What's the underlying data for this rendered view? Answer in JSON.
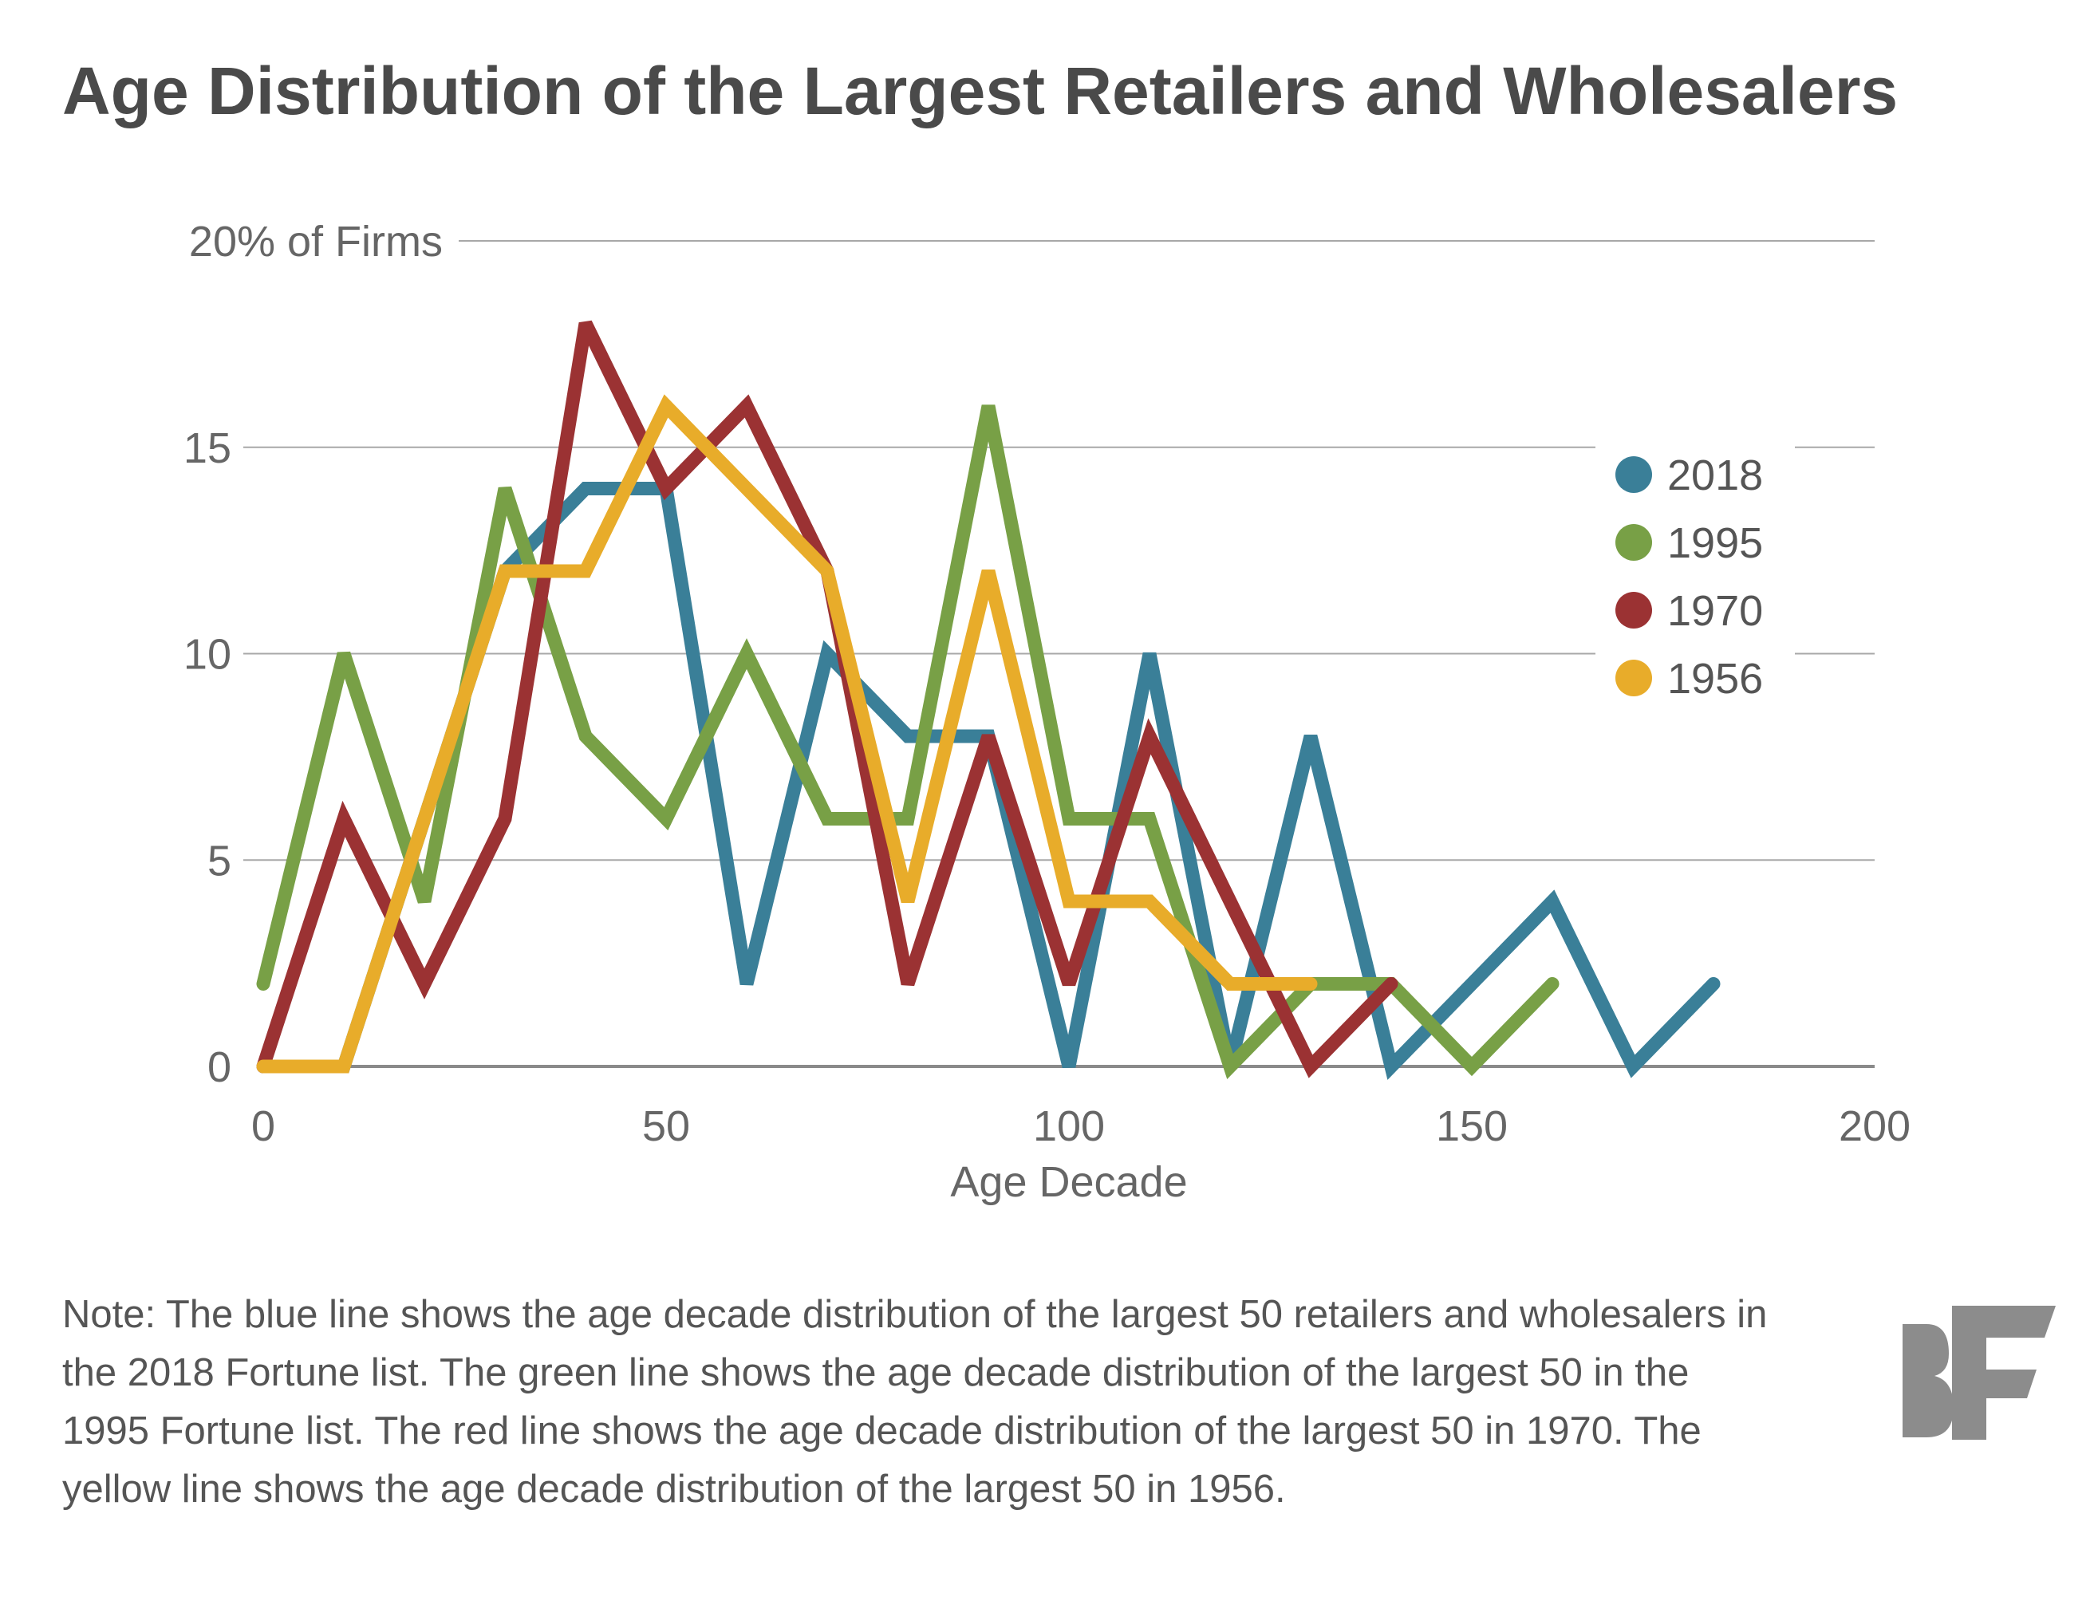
{
  "chart_data": {
    "type": "line",
    "title": "Age Distribution of the Largest Retailers and Wholesalers",
    "xlabel": "Age Decade",
    "ylabel": "% of Firms",
    "xlim": [
      0,
      200
    ],
    "ylim": [
      0,
      20
    ],
    "x_ticks": [
      0,
      50,
      100,
      150,
      200
    ],
    "y_ticks": [
      0,
      5,
      10,
      15,
      20
    ],
    "y_tick_labels": [
      "0",
      "5",
      "10",
      "15",
      "20% of Firms"
    ],
    "grid": true,
    "legend_position": "right",
    "series": [
      {
        "name": "2018",
        "color": "#3a7f98",
        "x": [
          0,
          10,
          20,
          30,
          40,
          50,
          60,
          70,
          80,
          90,
          100,
          110,
          120,
          130,
          140,
          150,
          160,
          170,
          180
        ],
        "values": [
          0,
          0,
          6,
          12,
          14,
          14,
          2,
          10,
          8,
          8,
          0,
          10,
          0,
          8,
          0,
          2,
          4,
          0,
          2
        ]
      },
      {
        "name": "1995",
        "color": "#78a046",
        "x": [
          0,
          10,
          20,
          30,
          40,
          50,
          60,
          70,
          80,
          90,
          100,
          110,
          120,
          130,
          140,
          150,
          160
        ],
        "values": [
          2,
          10,
          4,
          14,
          8,
          6,
          10,
          6,
          6,
          16,
          6,
          6,
          0,
          2,
          2,
          0,
          2
        ]
      },
      {
        "name": "1970",
        "color": "#9b3233",
        "x": [
          0,
          10,
          20,
          30,
          40,
          50,
          60,
          70,
          80,
          90,
          100,
          110,
          120,
          130,
          140
        ],
        "values": [
          0,
          6,
          2,
          6,
          18,
          14,
          16,
          12,
          2,
          8,
          2,
          8,
          4,
          0,
          2
        ]
      },
      {
        "name": "1956",
        "color": "#e8ac2a",
        "x": [
          0,
          10,
          20,
          30,
          40,
          50,
          60,
          70,
          80,
          90,
          100,
          110,
          120,
          130
        ],
        "values": [
          0,
          0,
          6,
          12,
          12,
          16,
          14,
          12,
          4,
          12,
          4,
          4,
          2,
          2
        ]
      }
    ]
  },
  "note": "Note: The blue line shows the age decade distribution of the largest 50 retailers and wholesalers in the 2018 Fortune list. The green line shows the age decade distribution of the largest 50 in the 1995 Fortune list. The red line shows the age decade distribution of the largest 50 in 1970. The yellow line shows the age decade distribution of the largest 50 in 1956.",
  "logo": {
    "text": "BF",
    "color": "#8c8c8c"
  }
}
